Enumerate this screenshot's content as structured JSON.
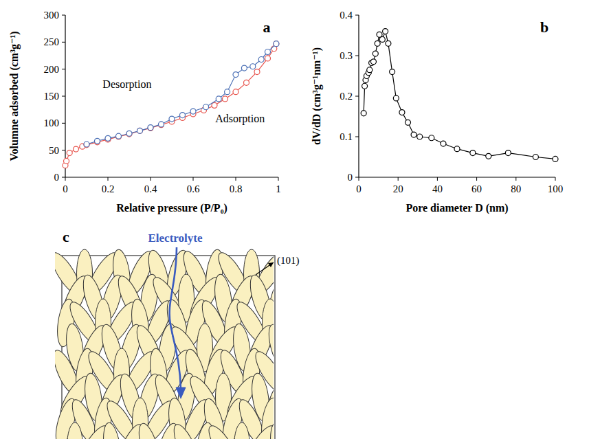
{
  "chart_data": [
    {
      "type": "scatter",
      "panel": "a",
      "x_label": "Relative pressure (P/P₀)",
      "y_label": "Volumne adsorbed (cm³g⁻¹)",
      "xlim": [
        0,
        1
      ],
      "ylim": [
        0,
        300
      ],
      "xticks": [
        0,
        0.2,
        0.4,
        0.6,
        0.8,
        1
      ],
      "yticks": [
        0,
        50,
        100,
        150,
        200,
        250,
        300
      ],
      "grid": false,
      "series": [
        {
          "name": "Adsorption",
          "color": "#e8554e",
          "marker": "open-circle",
          "line_style": "solid",
          "x": [
            0,
            0.005,
            0.02,
            0.05,
            0.08,
            0.1,
            0.15,
            0.2,
            0.25,
            0.3,
            0.35,
            0.4,
            0.45,
            0.5,
            0.55,
            0.6,
            0.65,
            0.7,
            0.75,
            0.8,
            0.85,
            0.9,
            0.95,
            0.98,
            0.99
          ],
          "values": [
            22,
            30,
            45,
            52,
            57,
            60,
            65,
            70,
            75,
            80,
            86,
            91,
            97,
            103,
            110,
            117,
            124,
            133,
            145,
            158,
            175,
            195,
            220,
            238,
            247
          ]
        },
        {
          "name": "Desorption",
          "color": "#4a6fb5",
          "marker": "open-circle",
          "line_style": "solid",
          "x": [
            0.99,
            0.95,
            0.92,
            0.88,
            0.84,
            0.8,
            0.76,
            0.72,
            0.66,
            0.6,
            0.55,
            0.5,
            0.45,
            0.4,
            0.35,
            0.3,
            0.25,
            0.2,
            0.15,
            0.1
          ],
          "values": [
            247,
            232,
            218,
            205,
            202,
            190,
            158,
            145,
            130,
            122,
            115,
            108,
            98,
            92,
            86,
            81,
            76,
            72,
            67,
            61
          ]
        }
      ]
    },
    {
      "type": "line",
      "panel": "b",
      "x_label": "Pore diameter D (nm)",
      "y_label": "dV/dD (cm³g⁻¹nm⁻¹)",
      "xlim": [
        0,
        100
      ],
      "ylim": [
        0,
        0.4
      ],
      "xticks": [
        0,
        20,
        40,
        60,
        80,
        100
      ],
      "yticks": [
        0,
        0.1,
        0.2,
        0.3,
        0.4
      ],
      "grid": false,
      "series": [
        {
          "color": "#000000",
          "marker": "open-circle",
          "line_style": "solid",
          "x": [
            2.5,
            3,
            3.5,
            4,
            5,
            5.5,
            6.5,
            7.5,
            8.5,
            9.5,
            10.5,
            12,
            13.5,
            15,
            17,
            19,
            22,
            25,
            28,
            31,
            37,
            43,
            50,
            58,
            66,
            76,
            90,
            100
          ],
          "values": [
            0.158,
            0.225,
            0.24,
            0.25,
            0.258,
            0.265,
            0.282,
            0.285,
            0.305,
            0.33,
            0.352,
            0.34,
            0.36,
            0.33,
            0.26,
            0.195,
            0.16,
            0.135,
            0.105,
            0.1,
            0.097,
            0.083,
            0.07,
            0.06,
            0.052,
            0.06,
            0.05,
            0.045
          ]
        }
      ]
    }
  ],
  "diagram": {
    "panel": "c",
    "electrolyte_label": "Electrolyte",
    "plane_label": "(101)"
  }
}
